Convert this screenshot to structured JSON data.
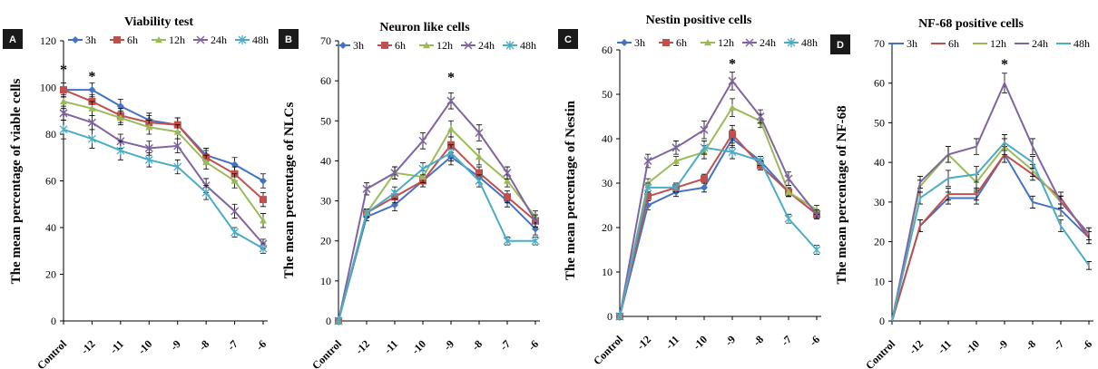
{
  "chart_data": [
    {
      "type": "line",
      "panel_label": "A",
      "title": "Viability test",
      "ylabel": "The mean percentage of viable cells",
      "xlabel": "",
      "categories": [
        "Control",
        "-12",
        "-11",
        "-10",
        "-9",
        "-8",
        "-7",
        "-6"
      ],
      "ylim": [
        0,
        120
      ],
      "yticks": [
        0,
        20,
        40,
        60,
        80,
        100,
        120
      ],
      "grid": false,
      "legend": "top",
      "annotations": [
        {
          "text": "*",
          "category": "Control",
          "y": 108
        },
        {
          "text": "*",
          "category": "-12",
          "y": 105
        }
      ],
      "series": [
        {
          "name": "3h",
          "color": "#4472C4",
          "marker": "diamond",
          "values": [
            99,
            99,
            92,
            86,
            84,
            71,
            67,
            60
          ],
          "errors": [
            3,
            3,
            3,
            3,
            3,
            3,
            3,
            3
          ]
        },
        {
          "name": "6h",
          "color": "#C0504D",
          "marker": "square",
          "values": [
            99,
            94,
            88,
            85,
            84,
            70,
            63,
            52
          ],
          "errors": [
            3,
            3,
            3,
            3,
            3,
            3,
            3,
            3
          ]
        },
        {
          "name": "12h",
          "color": "#9BBB59",
          "marker": "triangle",
          "values": [
            94,
            91,
            87,
            83,
            81,
            68,
            60,
            43
          ],
          "errors": [
            3,
            3,
            3,
            3,
            3,
            3,
            3,
            3
          ]
        },
        {
          "name": "24h",
          "color": "#8064A2",
          "marker": "x",
          "values": [
            89,
            85,
            77,
            74,
            75,
            58,
            47,
            33
          ],
          "errors": [
            3,
            3,
            3,
            3,
            3,
            3,
            3,
            2
          ]
        },
        {
          "name": "48h",
          "color": "#4BACC6",
          "marker": "star",
          "values": [
            82,
            78,
            73,
            69,
            66,
            55,
            38,
            31
          ],
          "errors": [
            4,
            4,
            4,
            3,
            3,
            3,
            2,
            2
          ]
        }
      ]
    },
    {
      "type": "line",
      "panel_label": "B",
      "title": "Neuron like cells",
      "ylabel": "The mean percentage of NLCs",
      "xlabel": "",
      "categories": [
        "Control",
        "-12",
        "-11",
        "-10",
        "-9",
        "-8",
        "-7",
        "-6"
      ],
      "ylim": [
        0,
        70
      ],
      "yticks": [
        0,
        10,
        20,
        30,
        40,
        50,
        60,
        70
      ],
      "grid": false,
      "legend": "top",
      "annotations": [
        {
          "text": "*",
          "category": "-9",
          "y": 61
        }
      ],
      "series": [
        {
          "name": "3h",
          "color": "#4472C4",
          "marker": "diamond",
          "values": [
            0,
            26,
            29,
            35,
            41,
            36,
            30,
            23
          ],
          "errors": [
            0,
            1,
            1.5,
            1.5,
            2,
            1.5,
            1.5,
            1.5
          ]
        },
        {
          "name": "6h",
          "color": "#C0504D",
          "marker": "square",
          "values": [
            0,
            27,
            31,
            35,
            44,
            37,
            31,
            25
          ],
          "errors": [
            0,
            1,
            1.5,
            1.5,
            2,
            1.5,
            1.5,
            1.5
          ]
        },
        {
          "name": "12h",
          "color": "#9BBB59",
          "marker": "triangle",
          "values": [
            0,
            27,
            37,
            36,
            48,
            41,
            35,
            26
          ],
          "errors": [
            0,
            1,
            1.5,
            1.5,
            2,
            2,
            1.5,
            1.5
          ]
        },
        {
          "name": "24h",
          "color": "#8064A2",
          "marker": "x",
          "values": [
            0,
            33,
            37,
            45,
            55,
            47,
            37,
            25
          ],
          "errors": [
            0,
            1.5,
            1.5,
            2,
            2,
            2,
            1.5,
            1.5
          ]
        },
        {
          "name": "48h",
          "color": "#4BACC6",
          "marker": "star",
          "values": [
            0,
            27,
            32,
            38,
            42,
            35,
            20,
            20
          ],
          "errors": [
            0,
            1,
            1.5,
            1.5,
            2,
            1.5,
            1,
            1
          ]
        }
      ]
    },
    {
      "type": "line",
      "panel_label": "C",
      "title": "Nestin positive cells",
      "ylabel": "The mean percentage of Nestin",
      "xlabel": "",
      "categories": [
        "Control",
        "-12",
        "-11",
        "-10",
        "-9",
        "-8",
        "-7",
        "-6"
      ],
      "ylim": [
        0,
        60
      ],
      "yticks": [
        0,
        10,
        20,
        30,
        40,
        50,
        60
      ],
      "grid": false,
      "legend": "top",
      "annotations": [
        {
          "text": "*",
          "category": "-9",
          "y": 57
        }
      ],
      "series": [
        {
          "name": "3h",
          "color": "#4472C4",
          "marker": "diamond",
          "values": [
            0,
            25,
            28,
            29,
            40,
            35,
            28,
            23
          ],
          "errors": [
            0,
            1,
            1,
            1,
            2,
            1,
            1,
            1
          ]
        },
        {
          "name": "6h",
          "color": "#C0504D",
          "marker": "square",
          "values": [
            0,
            27,
            29,
            31,
            41,
            34,
            28,
            23
          ],
          "errors": [
            0,
            1,
            1,
            1,
            2,
            1,
            1,
            1
          ]
        },
        {
          "name": "12h",
          "color": "#9BBB59",
          "marker": "triangle",
          "values": [
            0,
            30,
            35,
            37,
            47,
            44,
            28,
            24
          ],
          "errors": [
            0,
            1,
            1,
            1.5,
            2,
            1.5,
            1,
            1
          ]
        },
        {
          "name": "24h",
          "color": "#8064A2",
          "marker": "x",
          "values": [
            0,
            35,
            38,
            42,
            53,
            45,
            31,
            23
          ],
          "errors": [
            0,
            1.5,
            1.5,
            2,
            2,
            1.5,
            1.5,
            1
          ]
        },
        {
          "name": "48h",
          "color": "#4BACC6",
          "marker": "star",
          "values": [
            0,
            29,
            29,
            38,
            37,
            35,
            22,
            15
          ],
          "errors": [
            0,
            1,
            1,
            1.5,
            1.5,
            1,
            1,
            1
          ]
        }
      ]
    },
    {
      "type": "line",
      "panel_label": "D",
      "title": "NF-68 positive cells",
      "ylabel": "The mean percentage of NF-68",
      "xlabel": "",
      "categories": [
        "Control",
        "-12",
        "-11",
        "-10",
        "-9",
        "-8",
        "-7",
        "-6"
      ],
      "ylim": [
        0,
        70
      ],
      "yticks": [
        0,
        10,
        20,
        30,
        40,
        50,
        60,
        70
      ],
      "grid": false,
      "legend": "top",
      "annotations": [
        {
          "text": "*",
          "category": "-9",
          "y": 65
        }
      ],
      "series": [
        {
          "name": "3h",
          "color": "#4472C4",
          "marker": "none",
          "values": [
            0,
            24,
            31,
            31,
            42,
            30,
            28,
            21
          ],
          "errors": [
            0,
            1.5,
            1.5,
            1.5,
            2,
            1.5,
            1.5,
            1.5
          ]
        },
        {
          "name": "6h",
          "color": "#C0504D",
          "marker": "none",
          "values": [
            0,
            24,
            32,
            32,
            42,
            37,
            31,
            21
          ],
          "errors": [
            0,
            1.5,
            1.5,
            1.5,
            2,
            1.5,
            1.5,
            1.5
          ]
        },
        {
          "name": "12h",
          "color": "#9BBB59",
          "marker": "none",
          "values": [
            0,
            34,
            42,
            35,
            44,
            38,
            30,
            22
          ],
          "errors": [
            0,
            1.5,
            2,
            2,
            2,
            1.5,
            1.5,
            1.5
          ]
        },
        {
          "name": "24h",
          "color": "#8064A2",
          "marker": "none",
          "values": [
            0,
            35,
            42,
            44,
            60,
            44,
            30,
            22
          ],
          "errors": [
            0,
            1.5,
            2,
            2,
            2.5,
            2,
            1.5,
            1.5
          ]
        },
        {
          "name": "48h",
          "color": "#4BACC6",
          "marker": "none",
          "values": [
            0,
            31,
            36,
            37,
            45,
            40,
            24,
            14
          ],
          "errors": [
            0,
            1.5,
            2,
            2,
            2,
            1.5,
            1.5,
            1
          ]
        }
      ]
    }
  ]
}
